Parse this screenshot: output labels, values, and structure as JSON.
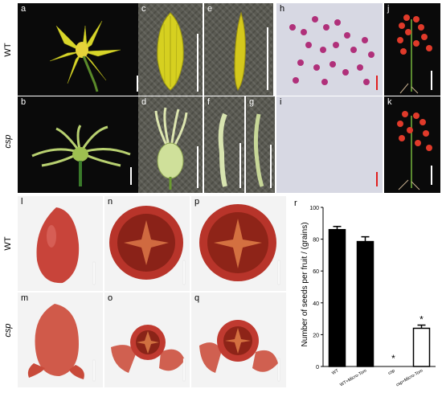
{
  "row_labels": {
    "wt": "WT",
    "csp": "csp"
  },
  "panels": {
    "a": "a",
    "b": "b",
    "c": "c",
    "d": "d",
    "e": "e",
    "f": "f",
    "g": "g",
    "h": "h",
    "i": "i",
    "j": "j",
    "k": "k",
    "l": "l",
    "m": "m",
    "n": "n",
    "o": "o",
    "p": "p",
    "q": "q",
    "r": "r"
  },
  "colors": {
    "bar_fill": "#000000",
    "scale_white": "#ffffff",
    "scale_red": "#e02020"
  },
  "chart_data": {
    "type": "bar",
    "categories": [
      "WT",
      "WT+Micro-Tom",
      "csp",
      "csp+Micro-Tom"
    ],
    "values": [
      86,
      78.5,
      0,
      24
    ],
    "errors": [
      2,
      3,
      0,
      2
    ],
    "significance": [
      "",
      "",
      "*",
      "*"
    ],
    "fills": [
      "#000000",
      "#000000",
      "#ffffff",
      "#ffffff"
    ],
    "title": "",
    "xlabel": "",
    "ylabel": "Number of seeds per fruit / (grains)",
    "ylim": [
      0,
      100
    ],
    "yticks": [
      "0",
      "20",
      "40",
      "60",
      "80",
      "100"
    ]
  }
}
